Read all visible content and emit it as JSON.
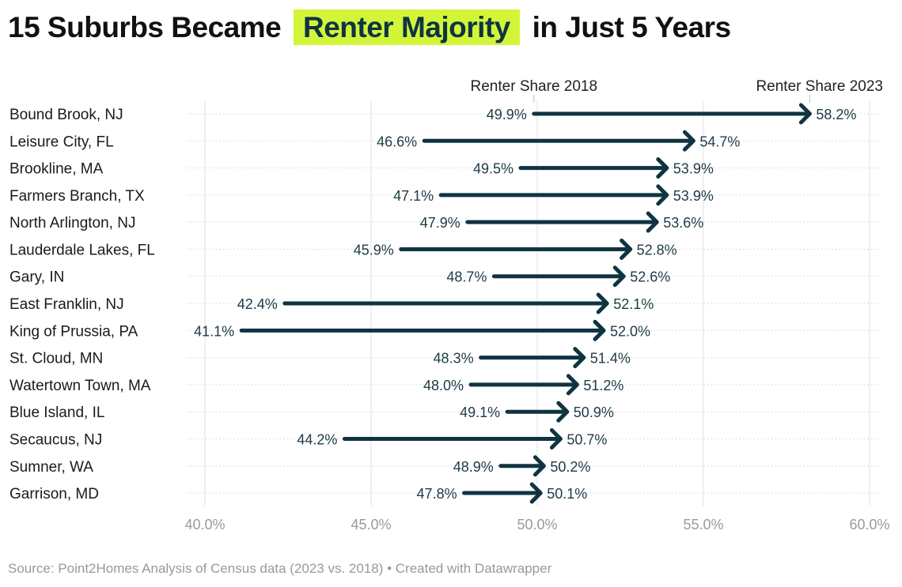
{
  "title": {
    "before": "15 Suburbs Became",
    "highlight": "Renter Majority",
    "after": "in Just 5 Years"
  },
  "source": "Source: Point2Homes Analysis of Census data (2023 vs. 2018) • Created with Datawrapper",
  "colors": {
    "arrow": "#0f3441",
    "highlight": "#d2f53a",
    "grid": "#e2e2e2",
    "tick": "#9a9a9a"
  },
  "chart_data": {
    "type": "arrow",
    "legend": {
      "start": "Renter Share 2018",
      "end": "Renter Share 2023"
    },
    "xlim": [
      40,
      60
    ],
    "xticks": [
      "40.0%",
      "45.0%",
      "50.0%",
      "55.0%",
      "60.0%"
    ],
    "categories": [
      "Bound Brook, NJ",
      "Leisure City, FL",
      "Brookline, MA",
      "Farmers Branch, TX",
      "North Arlington, NJ",
      "Lauderdale Lakes, FL",
      "Gary, IN",
      "East Franklin, NJ",
      "King of Prussia, PA",
      "St. Cloud, MN",
      "Watertown Town, MA",
      "Blue Island, IL",
      "Secaucus, NJ",
      "Sumner, WA",
      "Garrison, MD"
    ],
    "series": [
      {
        "name": "Renter Share 2018",
        "values": [
          49.9,
          46.6,
          49.5,
          47.1,
          47.9,
          45.9,
          48.7,
          42.4,
          41.1,
          48.3,
          48.0,
          49.1,
          44.2,
          48.9,
          47.8
        ]
      },
      {
        "name": "Renter Share 2023",
        "values": [
          58.2,
          54.7,
          53.9,
          53.9,
          53.6,
          52.8,
          52.6,
          52.1,
          52.0,
          51.4,
          51.2,
          50.9,
          50.7,
          50.2,
          50.1
        ]
      }
    ]
  }
}
